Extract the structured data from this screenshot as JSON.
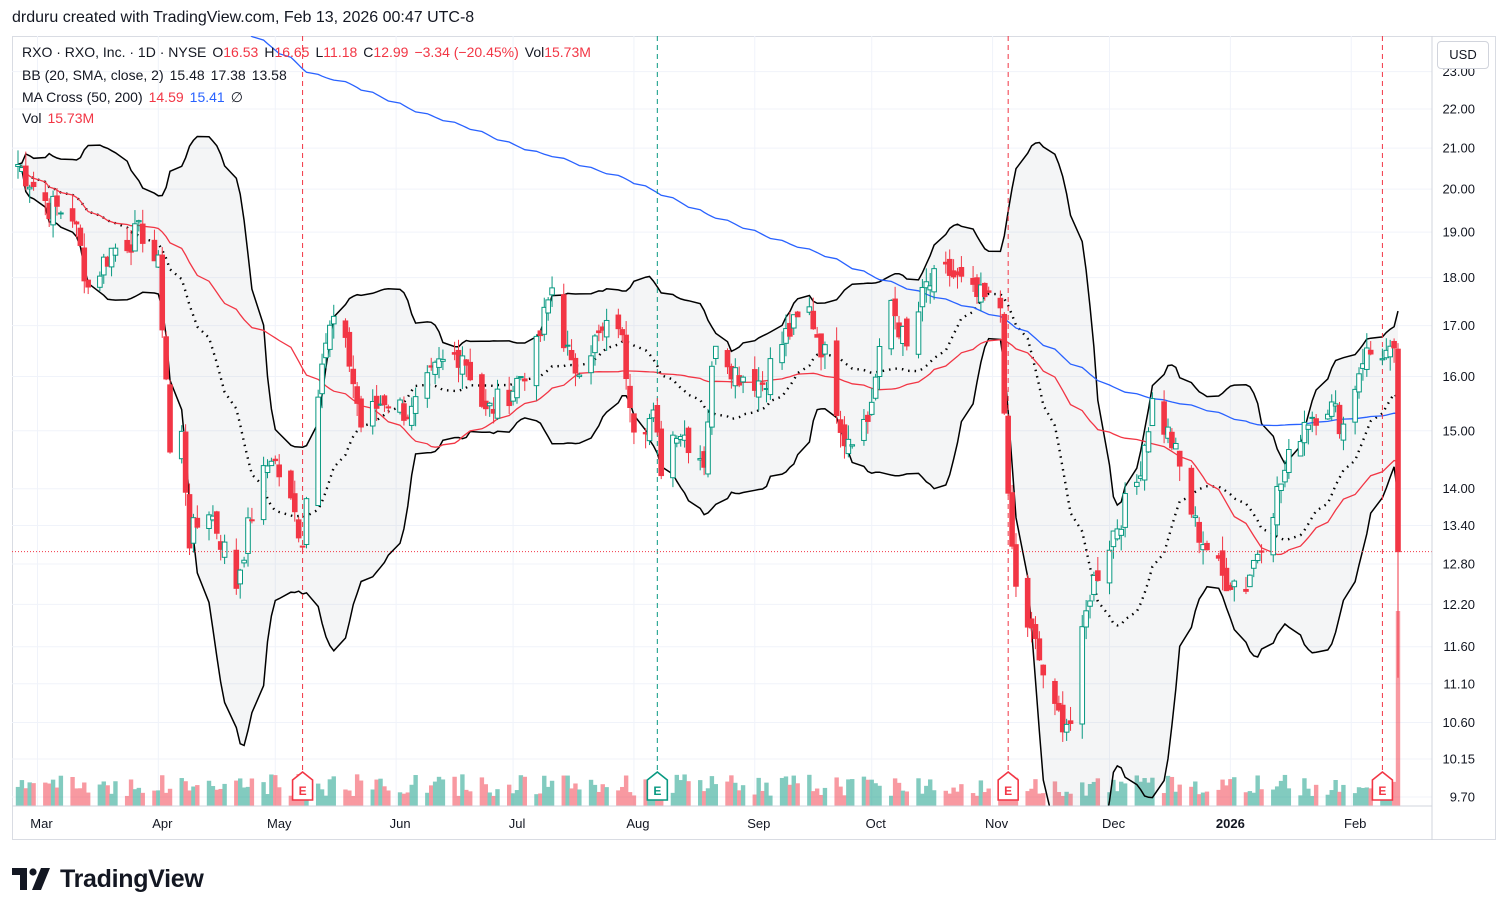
{
  "header": {
    "author": "drduru",
    "text": "drduru created with TradingView.com, Feb 13, 2026 00:47 UTC-8"
  },
  "legend": {
    "symbol": "RXO · RXO, Inc. · 1D · NYSE",
    "open_label": "O",
    "open": "16.53",
    "high_label": "H",
    "high": "16.65",
    "low_label": "L",
    "low": "11.18",
    "close_label": "C",
    "close": "12.99",
    "change": "−3.34 (−20.45%)",
    "vol_label": "Vol",
    "vol": "15.73M",
    "bb_label": "BB (20, SMA, close, 2)",
    "bb_basis": "15.48",
    "bb_upper": "17.38",
    "bb_lower": "13.58",
    "ma_label": "MA Cross (50, 200)",
    "ma50": "14.59",
    "ma200": "15.41",
    "ma_extra": "∅",
    "vol2_label": "Vol",
    "vol2": "15.73M"
  },
  "currency_button": "USD",
  "brand": {
    "name": "TradingView",
    "logo_icon": "tradingview-logo-icon"
  },
  "colors": {
    "up": "#089981",
    "down": "#f23645",
    "bb": "#000000",
    "ma50": "#f23645",
    "ma200": "#2962ff",
    "earnings": "#f23645",
    "dividend": "#089981"
  },
  "chart_data": {
    "type": "candlestick",
    "symbol": "RXO",
    "interval": "1D",
    "y_axis": {
      "ticks": [
        "23.00",
        "22.00",
        "21.00",
        "20.00",
        "19.00",
        "18.00",
        "17.00",
        "16.00",
        "15.00",
        "14.00",
        "13.40",
        "12.80",
        "12.20",
        "11.60",
        "11.10",
        "10.60",
        "10.15",
        "9.70"
      ],
      "log_scale": true
    },
    "x_axis": {
      "ticks": [
        "Mar",
        "Apr",
        "May",
        "Jun",
        "Jul",
        "Aug",
        "Sep",
        "Oct",
        "Nov",
        "Dec",
        "2026",
        "Feb"
      ]
    },
    "last_price": 12.99,
    "anchors": [
      {
        "date": "2025-02-24",
        "close": 20.6
      },
      {
        "date": "2025-03-04",
        "close": 19.6
      },
      {
        "date": "2025-03-10",
        "close": 19.4
      },
      {
        "date": "2025-03-14",
        "close": 17.8
      },
      {
        "date": "2025-03-20",
        "close": 18.6
      },
      {
        "date": "2025-03-28",
        "close": 19.0
      },
      {
        "date": "2025-04-01",
        "close": 18.2
      },
      {
        "date": "2025-04-03",
        "close": 16.0
      },
      {
        "date": "2025-04-04",
        "close": 14.6
      },
      {
        "date": "2025-04-07",
        "close": 14.9
      },
      {
        "date": "2025-04-09",
        "close": 13.2
      },
      {
        "date": "2025-04-14",
        "close": 13.7
      },
      {
        "date": "2025-04-21",
        "close": 12.5
      },
      {
        "date": "2025-04-25",
        "close": 13.6
      },
      {
        "date": "2025-04-30",
        "close": 14.6
      },
      {
        "date": "2025-05-08",
        "close": 13.2
      },
      {
        "date": "2025-05-13",
        "close": 16.5
      },
      {
        "date": "2025-05-16",
        "close": 17.1
      },
      {
        "date": "2025-05-20",
        "close": 16.3
      },
      {
        "date": "2025-05-23",
        "close": 15.1
      },
      {
        "date": "2025-05-29",
        "close": 15.6
      },
      {
        "date": "2025-06-05",
        "close": 15.3
      },
      {
        "date": "2025-06-12",
        "close": 16.2
      },
      {
        "date": "2025-06-18",
        "close": 16.5
      },
      {
        "date": "2025-06-24",
        "close": 15.3
      },
      {
        "date": "2025-07-01",
        "close": 15.8
      },
      {
        "date": "2025-07-07",
        "close": 16.5
      },
      {
        "date": "2025-07-11",
        "close": 17.8
      },
      {
        "date": "2025-07-16",
        "close": 16.1
      },
      {
        "date": "2025-07-21",
        "close": 16.6
      },
      {
        "date": "2025-07-28",
        "close": 17.1
      },
      {
        "date": "2025-08-01",
        "close": 15.2
      },
      {
        "date": "2025-08-06",
        "close": 15.2
      },
      {
        "date": "2025-08-08",
        "close": 14.4
      },
      {
        "date": "2025-08-12",
        "close": 15.1
      },
      {
        "date": "2025-08-19",
        "close": 14.5
      },
      {
        "date": "2025-08-22",
        "close": 16.8
      },
      {
        "date": "2025-08-27",
        "close": 16.1
      },
      {
        "date": "2025-09-03",
        "close": 15.9
      },
      {
        "date": "2025-09-09",
        "close": 16.8
      },
      {
        "date": "2025-09-15",
        "close": 17.3
      },
      {
        "date": "2025-09-19",
        "close": 16.4
      },
      {
        "date": "2025-09-24",
        "close": 14.9
      },
      {
        "date": "2025-09-30",
        "close": 15.2
      },
      {
        "date": "2025-10-06",
        "close": 17.5
      },
      {
        "date": "2025-10-10",
        "close": 16.5
      },
      {
        "date": "2025-10-15",
        "close": 17.8
      },
      {
        "date": "2025-10-21",
        "close": 18.1
      },
      {
        "date": "2025-10-27",
        "close": 17.6
      },
      {
        "date": "2025-11-03",
        "close": 17.4
      },
      {
        "date": "2025-11-05",
        "close": 13.7
      },
      {
        "date": "2025-11-07",
        "close": 12.4
      },
      {
        "date": "2025-11-12",
        "close": 11.6
      },
      {
        "date": "2025-11-17",
        "close": 10.7
      },
      {
        "date": "2025-11-21",
        "close": 10.6
      },
      {
        "date": "2025-11-26",
        "close": 12.4
      },
      {
        "date": "2025-12-02",
        "close": 13.3
      },
      {
        "date": "2025-12-08",
        "close": 14.1
      },
      {
        "date": "2025-12-12",
        "close": 15.5
      },
      {
        "date": "2025-12-17",
        "close": 14.8
      },
      {
        "date": "2025-12-23",
        "close": 13.4
      },
      {
        "date": "2025-12-30",
        "close": 12.6
      },
      {
        "date": "2026-01-05",
        "close": 12.5
      },
      {
        "date": "2026-01-09",
        "close": 13.2
      },
      {
        "date": "2026-01-14",
        "close": 14.1
      },
      {
        "date": "2026-01-20",
        "close": 15.2
      },
      {
        "date": "2026-01-26",
        "close": 15.5
      },
      {
        "date": "2026-01-30",
        "close": 15.1
      },
      {
        "date": "2026-02-04",
        "close": 16.4
      },
      {
        "date": "2026-02-09",
        "close": 16.5
      },
      {
        "date": "2026-02-12",
        "close": 16.3
      },
      {
        "date": "2026-02-13",
        "close": 12.99
      }
    ],
    "last_bar": {
      "date": "2026-02-13",
      "open": 16.53,
      "high": 16.65,
      "low": 11.18,
      "close": 12.99,
      "volume": "15.73M"
    },
    "events": [
      {
        "type": "earnings",
        "label": "E",
        "date": "2025-05-08"
      },
      {
        "type": "dividend",
        "label": "E",
        "date": "2025-08-07"
      },
      {
        "type": "earnings",
        "label": "E",
        "date": "2025-11-05"
      },
      {
        "type": "earnings",
        "label": "E",
        "date": "2026-02-09"
      }
    ]
  }
}
